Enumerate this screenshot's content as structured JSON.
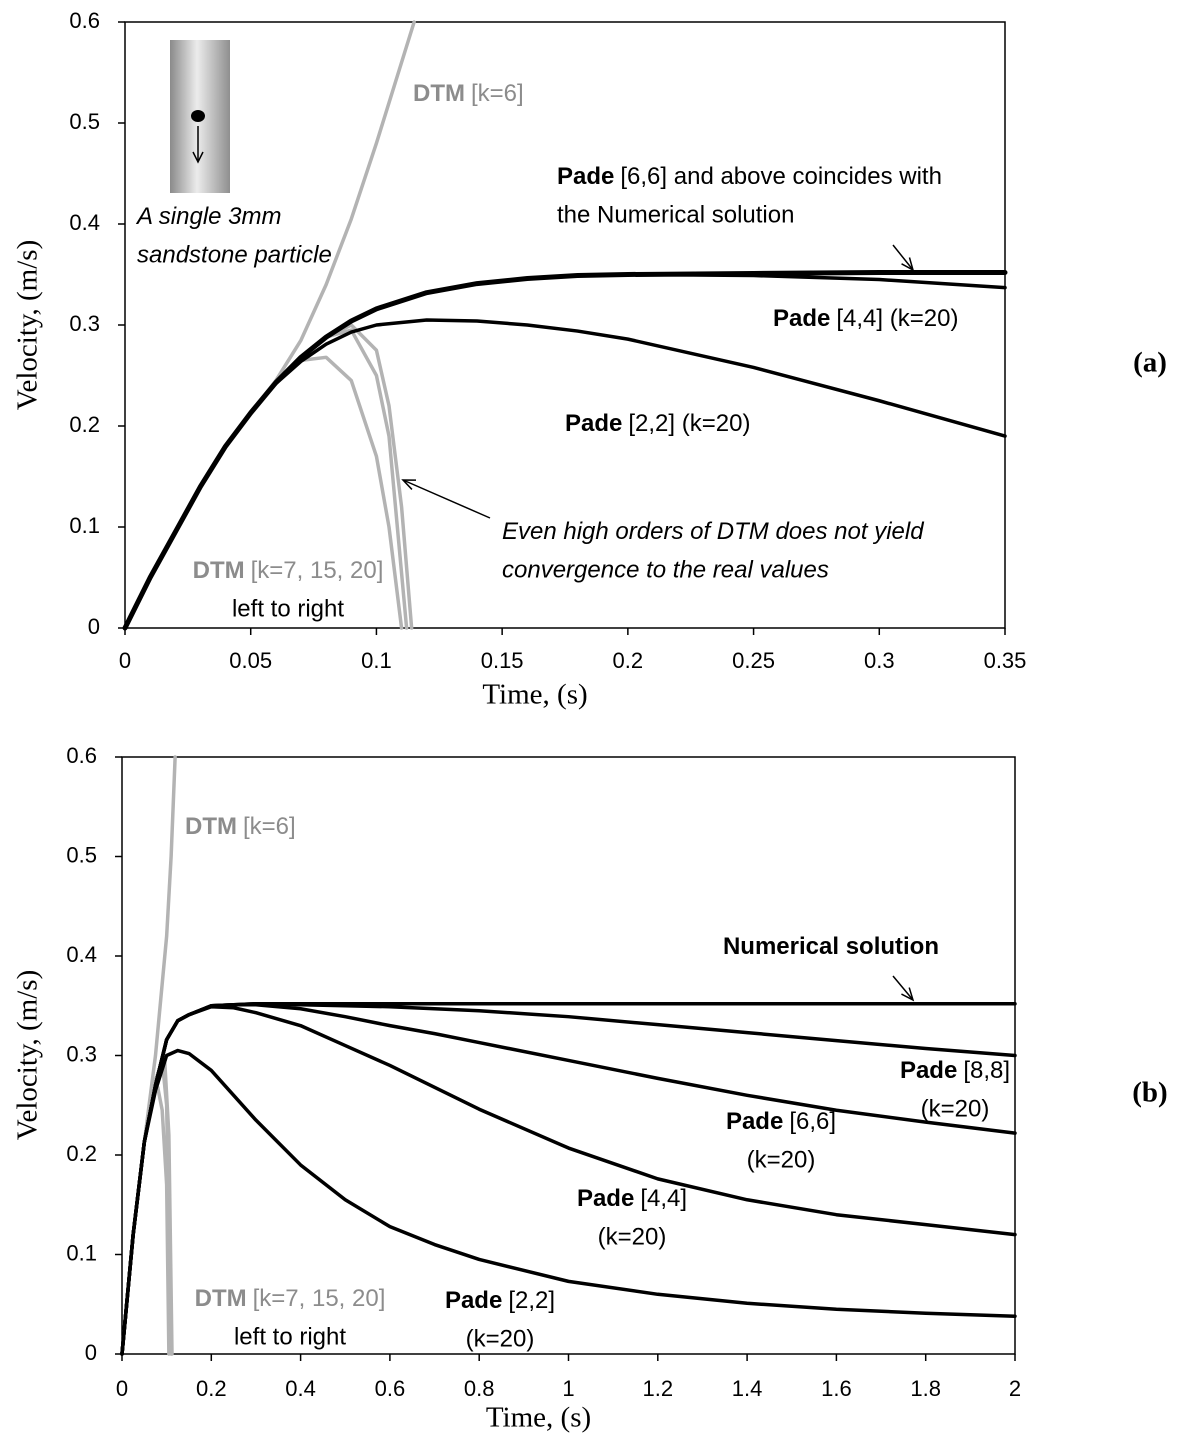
{
  "chart_data": [
    {
      "type": "line",
      "panel": "(a)",
      "xlabel": "Time, (s)",
      "ylabel": "Velocity, (m/s)",
      "xlim": [
        0,
        0.35
      ],
      "ylim": [
        0,
        0.6
      ],
      "xticks": [
        0,
        0.05,
        0.1,
        0.15,
        0.2,
        0.25,
        0.3,
        0.35
      ],
      "yticks": [
        0,
        0.1,
        0.2,
        0.3,
        0.4,
        0.5,
        0.6
      ],
      "series": [
        {
          "color": "#b3b3b3",
          "x": [
            0,
            0.01,
            0.02,
            0.03,
            0.04,
            0.05,
            0.06,
            0.07,
            0.08,
            0.09,
            0.1,
            0.11,
            0.115
          ],
          "values": [
            0,
            0.05,
            0.095,
            0.14,
            0.18,
            0.213,
            0.245,
            0.285,
            0.34,
            0.405,
            0.48,
            0.56,
            0.6
          ]
        },
        {
          "color": "#b3b3b3",
          "x": [
            0,
            0.01,
            0.02,
            0.03,
            0.04,
            0.05,
            0.06,
            0.07,
            0.08,
            0.09,
            0.1,
            0.105,
            0.11
          ],
          "values": [
            0,
            0.05,
            0.095,
            0.14,
            0.18,
            0.213,
            0.243,
            0.265,
            0.268,
            0.245,
            0.17,
            0.1,
            0
          ]
        },
        {
          "color": "#b3b3b3",
          "x": [
            0,
            0.01,
            0.02,
            0.03,
            0.04,
            0.05,
            0.06,
            0.07,
            0.08,
            0.09,
            0.1,
            0.105,
            0.112
          ],
          "values": [
            0,
            0.05,
            0.095,
            0.14,
            0.18,
            0.213,
            0.243,
            0.268,
            0.288,
            0.295,
            0.25,
            0.19,
            0
          ]
        },
        {
          "color": "#b3b3b3",
          "x": [
            0,
            0.01,
            0.02,
            0.03,
            0.04,
            0.05,
            0.06,
            0.07,
            0.08,
            0.09,
            0.1,
            0.105,
            0.11,
            0.114
          ],
          "values": [
            0,
            0.05,
            0.095,
            0.14,
            0.18,
            0.213,
            0.243,
            0.268,
            0.288,
            0.3,
            0.275,
            0.22,
            0.12,
            0
          ]
        },
        {
          "color": "#000000",
          "x": [
            0,
            0.01,
            0.02,
            0.03,
            0.04,
            0.05,
            0.06,
            0.07,
            0.08,
            0.09,
            0.1,
            0.12,
            0.14,
            0.16,
            0.18,
            0.2,
            0.25,
            0.3,
            0.35
          ],
          "values": [
            0,
            0.05,
            0.095,
            0.14,
            0.18,
            0.213,
            0.242,
            0.264,
            0.281,
            0.293,
            0.3,
            0.305,
            0.304,
            0.3,
            0.294,
            0.286,
            0.258,
            0.225,
            0.19
          ]
        },
        {
          "color": "#000000",
          "x": [
            0,
            0.01,
            0.02,
            0.03,
            0.04,
            0.05,
            0.06,
            0.07,
            0.08,
            0.09,
            0.1,
            0.12,
            0.14,
            0.16,
            0.18,
            0.2,
            0.25,
            0.3,
            0.35
          ],
          "values": [
            0,
            0.05,
            0.095,
            0.14,
            0.18,
            0.213,
            0.243,
            0.268,
            0.288,
            0.304,
            0.316,
            0.332,
            0.341,
            0.346,
            0.349,
            0.35,
            0.349,
            0.345,
            0.337
          ]
        },
        {
          "color": "#000000",
          "x": [
            0,
            0.01,
            0.02,
            0.03,
            0.04,
            0.05,
            0.06,
            0.07,
            0.08,
            0.09,
            0.1,
            0.12,
            0.14,
            0.16,
            0.18,
            0.2,
            0.25,
            0.3,
            0.35
          ],
          "values": [
            0,
            0.05,
            0.095,
            0.14,
            0.18,
            0.213,
            0.243,
            0.268,
            0.288,
            0.304,
            0.316,
            0.332,
            0.341,
            0.346,
            0.349,
            0.35,
            0.351,
            0.352,
            0.352
          ]
        }
      ],
      "annotations": [
        {
          "bold": "DTM",
          "lines": [
            "[k=6]"
          ],
          "color": "#8c8c8c"
        },
        {
          "bold": "Pade",
          "lines": [
            "[6,6] and above coincides with",
            "the Numerical solution"
          ]
        },
        {
          "bold": "Pade",
          "lines": [
            "[4,4] (k=20)"
          ]
        },
        {
          "bold": "Pade",
          "lines": [
            "[2,2] (k=20)"
          ]
        },
        {
          "lines": [
            "Even high orders of DTM does not yield",
            "convergence to the real values"
          ],
          "italic": true
        },
        {
          "bold": "DTM",
          "lines": [
            "[k=7, 15, 20]",
            "left to right"
          ],
          "color": "#8c8c8c"
        },
        {
          "lines": [
            "A single 3mm",
            "sandstone particle"
          ],
          "italic": true
        }
      ]
    },
    {
      "type": "line",
      "panel": "(b)",
      "xlabel": "Time, (s)",
      "ylabel": "Velocity, (m/s)",
      "xlim": [
        0,
        2
      ],
      "ylim": [
        0,
        0.6
      ],
      "xticks": [
        0,
        0.2,
        0.4,
        0.6,
        0.8,
        1,
        1.2,
        1.4,
        1.6,
        1.8,
        2
      ],
      "yticks": [
        0,
        0.1,
        0.2,
        0.3,
        0.4,
        0.5,
        0.6
      ],
      "series": [
        {
          "color": "#b3b3b3",
          "x": [
            0,
            0.025,
            0.05,
            0.075,
            0.1,
            0.11,
            0.119
          ],
          "values": [
            0,
            0.12,
            0.213,
            0.3,
            0.42,
            0.5,
            0.6
          ]
        },
        {
          "color": "#b3b3b3",
          "x": [
            0,
            0.025,
            0.05,
            0.07,
            0.08,
            0.09,
            0.1,
            0.105
          ],
          "values": [
            0,
            0.12,
            0.213,
            0.26,
            0.268,
            0.245,
            0.17,
            0
          ]
        },
        {
          "color": "#b3b3b3",
          "x": [
            0,
            0.025,
            0.05,
            0.075,
            0.09,
            0.1,
            0.11
          ],
          "values": [
            0,
            0.12,
            0.213,
            0.275,
            0.295,
            0.25,
            0
          ]
        },
        {
          "color": "#b3b3b3",
          "x": [
            0,
            0.025,
            0.05,
            0.075,
            0.095,
            0.105,
            0.112
          ],
          "values": [
            0,
            0.12,
            0.213,
            0.275,
            0.3,
            0.22,
            0
          ]
        },
        {
          "color": "#000000",
          "x": [
            0,
            0.025,
            0.05,
            0.075,
            0.1,
            0.125,
            0.15,
            0.2,
            0.25,
            0.3,
            0.4,
            0.5,
            0.6,
            0.7,
            0.8,
            1,
            1.2,
            1.4,
            1.6,
            1.8,
            2
          ],
          "values": [
            0,
            0.12,
            0.213,
            0.265,
            0.3,
            0.305,
            0.302,
            0.285,
            0.26,
            0.235,
            0.19,
            0.155,
            0.128,
            0.11,
            0.095,
            0.073,
            0.06,
            0.051,
            0.045,
            0.041,
            0.038
          ]
        },
        {
          "color": "#000000",
          "x": [
            0,
            0.025,
            0.05,
            0.075,
            0.1,
            0.125,
            0.15,
            0.2,
            0.25,
            0.3,
            0.4,
            0.5,
            0.6,
            0.7,
            0.8,
            1,
            1.2,
            1.4,
            1.6,
            1.8,
            2
          ],
          "values": [
            0,
            0.12,
            0.213,
            0.27,
            0.316,
            0.335,
            0.341,
            0.349,
            0.348,
            0.343,
            0.33,
            0.31,
            0.29,
            0.268,
            0.246,
            0.207,
            0.176,
            0.155,
            0.14,
            0.13,
            0.12
          ]
        },
        {
          "color": "#000000",
          "x": [
            0,
            0.025,
            0.05,
            0.075,
            0.1,
            0.125,
            0.15,
            0.2,
            0.25,
            0.3,
            0.4,
            0.5,
            0.6,
            0.7,
            0.8,
            1,
            1.2,
            1.4,
            1.6,
            1.8,
            2
          ],
          "values": [
            0,
            0.12,
            0.213,
            0.27,
            0.316,
            0.335,
            0.341,
            0.35,
            0.351,
            0.351,
            0.347,
            0.339,
            0.33,
            0.322,
            0.313,
            0.295,
            0.277,
            0.26,
            0.245,
            0.233,
            0.222
          ]
        },
        {
          "color": "#000000",
          "x": [
            0,
            0.025,
            0.05,
            0.075,
            0.1,
            0.125,
            0.15,
            0.2,
            0.25,
            0.3,
            0.4,
            0.5,
            0.6,
            0.7,
            0.8,
            1,
            1.2,
            1.4,
            1.6,
            1.8,
            2
          ],
          "values": [
            0,
            0.12,
            0.213,
            0.27,
            0.316,
            0.335,
            0.341,
            0.35,
            0.351,
            0.352,
            0.351,
            0.35,
            0.349,
            0.347,
            0.345,
            0.339,
            0.331,
            0.323,
            0.315,
            0.307,
            0.3
          ]
        },
        {
          "color": "#000000",
          "x": [
            0,
            0.025,
            0.05,
            0.075,
            0.1,
            0.125,
            0.15,
            0.2,
            0.25,
            0.3,
            0.4,
            0.5,
            0.6,
            0.7,
            0.8,
            1,
            1.2,
            1.4,
            1.6,
            1.8,
            2
          ],
          "values": [
            0,
            0.12,
            0.213,
            0.27,
            0.316,
            0.335,
            0.341,
            0.35,
            0.351,
            0.352,
            0.352,
            0.352,
            0.352,
            0.352,
            0.352,
            0.352,
            0.352,
            0.352,
            0.352,
            0.352,
            0.352
          ]
        }
      ],
      "annotations": [
        {
          "bold": "DTM",
          "lines": [
            "[k=6]"
          ],
          "color": "#8c8c8c"
        },
        {
          "bold": "Numerical solution",
          "lines": []
        },
        {
          "bold": "Pade",
          "lines": [
            "[8,8]",
            "(k=20)"
          ]
        },
        {
          "bold": "Pade",
          "lines": [
            "[6,6]",
            "(k=20)"
          ]
        },
        {
          "bold": "Pade",
          "lines": [
            "[4,4]",
            "(k=20)"
          ]
        },
        {
          "bold": "Pade",
          "lines": [
            "[2,2]",
            "(k=20)"
          ]
        },
        {
          "bold": "DTM",
          "lines": [
            "[k=7, 15, 20]",
            "left to right"
          ],
          "color": "#8c8c8c"
        }
      ]
    }
  ]
}
